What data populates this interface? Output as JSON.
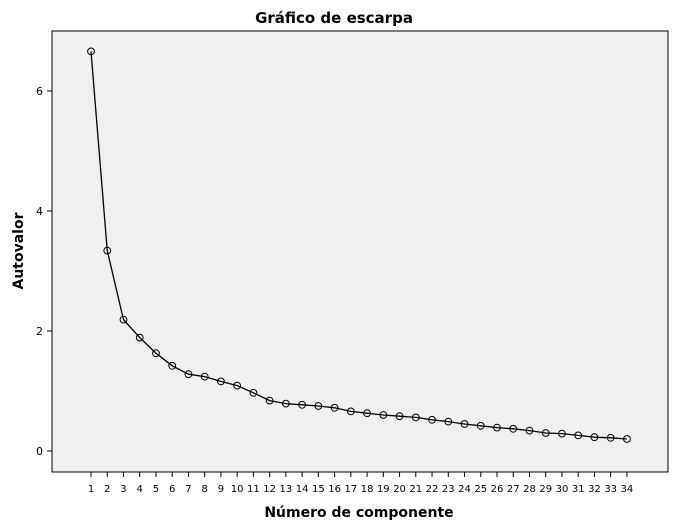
{
  "chart_data": {
    "type": "line",
    "title": "Gráfico de escarpa",
    "xlabel": "Número de componente",
    "ylabel": "Autovalor",
    "x": [
      1,
      2,
      3,
      4,
      5,
      6,
      7,
      8,
      9,
      10,
      11,
      12,
      13,
      14,
      15,
      16,
      17,
      18,
      19,
      20,
      21,
      22,
      23,
      24,
      25,
      26,
      27,
      28,
      29,
      30,
      31,
      32,
      33,
      34
    ],
    "series": [
      {
        "values": [
          6.66,
          3.34,
          2.19,
          1.89,
          1.63,
          1.42,
          1.28,
          1.24,
          1.16,
          1.09,
          0.97,
          0.84,
          0.79,
          0.77,
          0.75,
          0.72,
          0.66,
          0.63,
          0.6,
          0.58,
          0.56,
          0.52,
          0.49,
          0.45,
          0.42,
          0.39,
          0.37,
          0.34,
          0.3,
          0.29,
          0.26,
          0.23,
          0.22,
          0.2
        ],
        "color": "#000000",
        "marker": "open-circle"
      }
    ],
    "ylim": [
      -0.35,
      7.0
    ],
    "yticks": [
      0,
      2,
      4,
      6
    ],
    "grid": false,
    "legend": "none",
    "plot_background": "#f0f0f0"
  }
}
